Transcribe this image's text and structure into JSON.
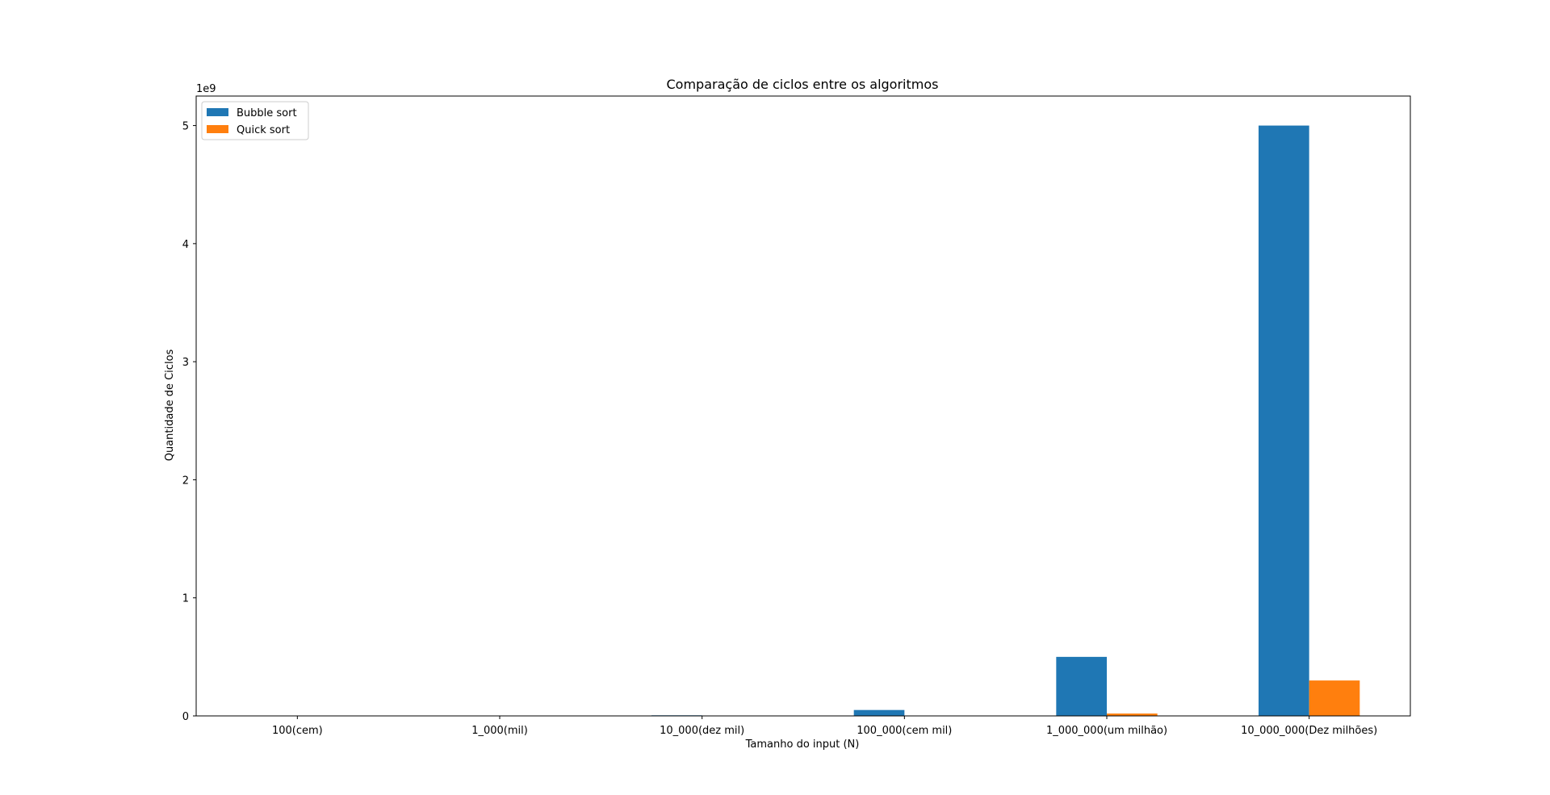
{
  "chart_data": {
    "type": "bar",
    "title": "Comparação de ciclos entre os algoritmos",
    "xlabel": "Tamanho do input (N)",
    "ylabel": "Quantidade de Ciclos",
    "y_offset_label": "1e9",
    "y_scale": 1000000000,
    "ylim": [
      0,
      5.25
    ],
    "yticks": [
      0,
      1,
      2,
      3,
      4,
      5
    ],
    "categories": [
      "100(cem)",
      "1_000(mil)",
      "10_000(dez mil)",
      "100_000(cem mil)",
      "1_000_000(um milhão)",
      "10_000_000(Dez milhões)"
    ],
    "series": [
      {
        "name": "Bubble sort",
        "color": "#1f77b4",
        "values": [
          5e-06,
          0.0005,
          0.005,
          0.05,
          0.5,
          5.0
        ]
      },
      {
        "name": "Quick sort",
        "color": "#ff7f0e",
        "values": [
          7e-07,
          1e-05,
          0.00014,
          0.0017,
          0.02,
          0.3
        ]
      }
    ],
    "legend_position": "top-left",
    "grid": false
  }
}
